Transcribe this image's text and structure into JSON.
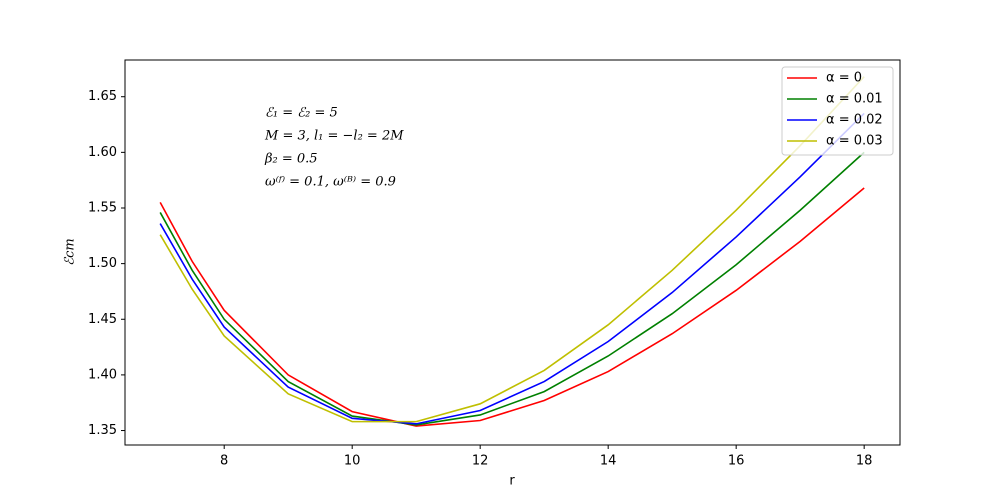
{
  "chart_data": {
    "type": "line",
    "x_label": "r",
    "y_label": "ℰcm",
    "annotations": [
      "ℰ₁ = ℰ₂ = 5",
      "M = 3, l₁ = −l₂ = 2M",
      "β₂ = 0.5",
      "ω⁽ᶠ⁾ = 0.1, ω⁽ᴮ⁾ = 0.9"
    ],
    "x": [
      7,
      7.5,
      8,
      9,
      10,
      11,
      12,
      13,
      14,
      15,
      16,
      17,
      18
    ],
    "series": [
      {
        "name": "α = 0",
        "color": "#ff0000",
        "values": [
          1.555,
          1.502,
          1.458,
          1.4,
          1.367,
          1.354,
          1.359,
          1.377,
          1.403,
          1.437,
          1.476,
          1.52,
          1.568
        ]
      },
      {
        "name": "α = 0.01",
        "color": "#008000",
        "values": [
          1.546,
          1.494,
          1.45,
          1.394,
          1.363,
          1.355,
          1.364,
          1.385,
          1.417,
          1.455,
          1.499,
          1.548,
          1.6
        ]
      },
      {
        "name": "α = 0.02",
        "color": "#0000ff",
        "values": [
          1.536,
          1.486,
          1.443,
          1.389,
          1.361,
          1.356,
          1.368,
          1.394,
          1.43,
          1.474,
          1.524,
          1.578,
          1.635
        ]
      },
      {
        "name": "α = 0.03",
        "color": "#bfbf00",
        "values": [
          1.526,
          1.477,
          1.435,
          1.383,
          1.358,
          1.358,
          1.374,
          1.404,
          1.445,
          1.494,
          1.548,
          1.606,
          1.668
        ]
      }
    ],
    "xlim": [
      6.45,
      18.56
    ],
    "xticks": [
      8,
      10,
      12,
      14,
      16,
      18
    ],
    "ylim": [
      1.337,
      1.683
    ],
    "yticks": [
      1.35,
      {
        "value": 1.4,
        "label": "1.40"
      },
      1.45,
      {
        "value": 1.5,
        "label": "1.50"
      },
      1.55,
      {
        "value": 1.6,
        "label": "1.60"
      },
      1.65
    ],
    "legend": "upper right"
  }
}
